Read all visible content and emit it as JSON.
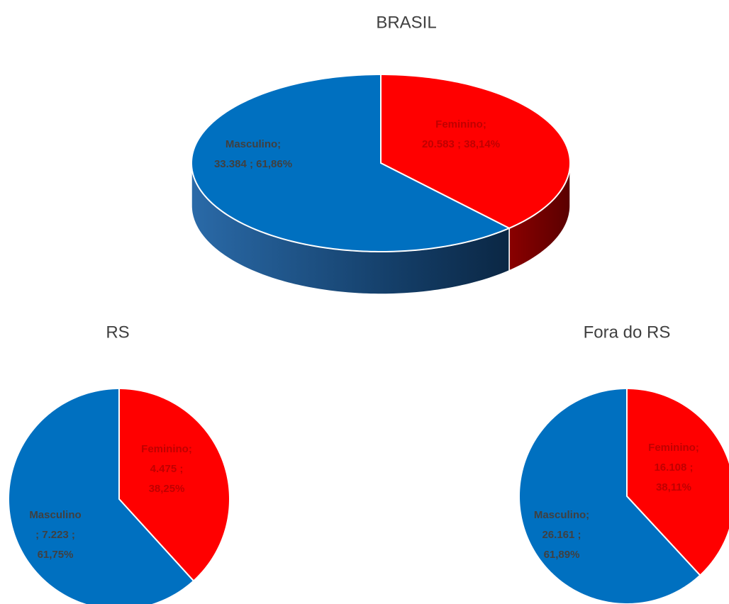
{
  "chart_data": [
    {
      "type": "pie",
      "three_d": true,
      "title": "BRASIL",
      "categories": [
        "Feminino",
        "Masculino"
      ],
      "values": [
        20583,
        33384
      ],
      "value_labels": [
        "Feminino; 20.583 ; 38,14%",
        "Masculino; 33.384 ; 61,86%"
      ],
      "colors": [
        "#ff0000",
        "#0070c0"
      ],
      "label_colors": [
        "#c00000",
        "#404040"
      ]
    },
    {
      "type": "pie",
      "title": "RS",
      "categories": [
        "Feminino",
        "Masculino"
      ],
      "values": [
        4475,
        7223
      ],
      "value_labels": [
        "Feminino; 4.475 ; 38,25%",
        "Masculino ; 7.223 ; 61,75%"
      ],
      "colors": [
        "#ff0000",
        "#0070c0"
      ],
      "label_colors": [
        "#c00000",
        "#404040"
      ]
    },
    {
      "type": "pie",
      "title": "Fora do RS",
      "categories": [
        "Feminino",
        "Masculino"
      ],
      "values": [
        16108,
        26161
      ],
      "value_labels": [
        "Feminino; 16.108 ; 38,11%",
        "Masculino; 26.161 ; 61,89%"
      ],
      "colors": [
        "#ff0000",
        "#0070c0"
      ],
      "label_colors": [
        "#c00000",
        "#404040"
      ]
    }
  ]
}
